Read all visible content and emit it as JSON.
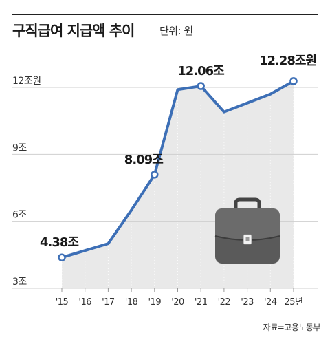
{
  "header": {
    "title": "구직급여 지급액 추이",
    "unit": "단위: 원"
  },
  "source": "자료=고용노동부",
  "colors": {
    "line": "#3d6fb6",
    "area": "#e9e9e9",
    "grid": "#cfcfcf",
    "marker_fill": "#ffffff",
    "briefcase": "#5a5a5a"
  },
  "icon": "briefcase-icon",
  "chart_data": {
    "type": "line",
    "x": [
      "'15",
      "'16",
      "'17",
      "'18",
      "'19",
      "'20",
      "'21",
      "'22",
      "'23",
      "'24",
      "25년"
    ],
    "series": [
      {
        "values": [
          4.38,
          null,
          5.0,
          6.5,
          8.09,
          11.9,
          12.06,
          10.9,
          null,
          11.7,
          12.28
        ]
      }
    ],
    "value_labels": [
      {
        "index": 0,
        "text": "4.38조"
      },
      {
        "index": 4,
        "text": "8.09조"
      },
      {
        "index": 6,
        "text": "12.06조"
      },
      {
        "index": 10,
        "text": "12.28조원"
      }
    ],
    "marker_indices": [
      0,
      4,
      6,
      10
    ],
    "yticks": [
      {
        "value": 3,
        "label": "3조"
      },
      {
        "value": 6,
        "label": "6조"
      },
      {
        "value": 9,
        "label": "9조"
      },
      {
        "value": 12,
        "label": "12조원"
      }
    ],
    "ylim": [
      3,
      12.6
    ],
    "grid": true
  }
}
